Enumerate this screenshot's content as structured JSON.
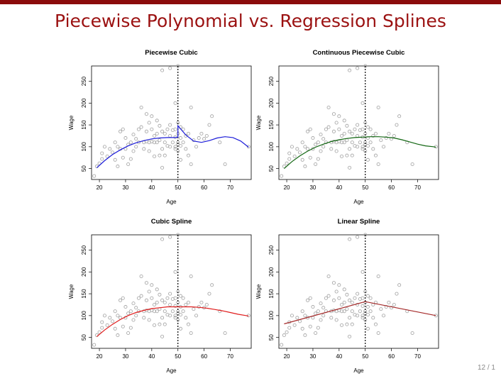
{
  "slide": {
    "title": "Piecewise Polynomial vs. Regression Splines",
    "page_number": "12 / 1",
    "accent_color": "#8b0c0c",
    "title_color": "#9b1111"
  },
  "chart_data": [
    {
      "type": "scatter",
      "title": "Piecewise Cubic",
      "xlabel": "Age",
      "ylabel": "Wage",
      "xlim": [
        17,
        78
      ],
      "ylim": [
        25,
        285
      ],
      "xticks": [
        20,
        30,
        40,
        50,
        60,
        70
      ],
      "yticks": [
        50,
        100,
        150,
        200,
        250
      ],
      "knot": 50,
      "curve_color": "#1c1cd9",
      "curve": {
        "x": [
          19,
          22,
          25,
          28,
          31,
          34,
          37,
          40,
          43,
          46,
          49,
          50,
          50,
          53,
          56,
          59,
          62,
          65,
          68,
          71,
          74,
          77
        ],
        "y": [
          52,
          68,
          82,
          93,
          102,
          109,
          114,
          118,
          120,
          121,
          121,
          122,
          148,
          127,
          113,
          110,
          114,
          120,
          123,
          121,
          113,
          99
        ]
      }
    },
    {
      "type": "scatter",
      "title": "Continuous Piecewise Cubic",
      "xlabel": "Age",
      "ylabel": "Wage",
      "xlim": [
        17,
        78
      ],
      "ylim": [
        25,
        285
      ],
      "xticks": [
        20,
        30,
        40,
        50,
        60,
        70
      ],
      "yticks": [
        50,
        100,
        150,
        200,
        250
      ],
      "knot": 50,
      "curve_color": "#116611",
      "curve": {
        "x": [
          19,
          22,
          25,
          28,
          31,
          34,
          37,
          40,
          43,
          46,
          49,
          52,
          55,
          58,
          61,
          64,
          67,
          70,
          73,
          76,
          77
        ],
        "y": [
          50,
          66,
          79,
          90,
          99,
          106,
          112,
          116,
          119,
          121,
          122,
          123,
          123,
          122,
          120,
          116,
          111,
          106,
          102,
          100,
          99
        ]
      }
    },
    {
      "type": "scatter",
      "title": "Cubic Spline",
      "xlabel": "Age",
      "ylabel": "Wage",
      "xlim": [
        17,
        78
      ],
      "ylim": [
        25,
        285
      ],
      "xticks": [
        20,
        30,
        40,
        50,
        60,
        70
      ],
      "yticks": [
        50,
        100,
        150,
        200,
        250
      ],
      "knot": 50,
      "curve_color": "#e01c1c",
      "curve": {
        "x": [
          19,
          22,
          25,
          28,
          31,
          34,
          37,
          40,
          43,
          46,
          49,
          52,
          55,
          58,
          61,
          64,
          67,
          70,
          73,
          76,
          77
        ],
        "y": [
          52,
          67,
          80,
          91,
          100,
          107,
          112,
          116,
          118,
          120,
          120,
          120,
          120,
          119,
          117,
          114,
          111,
          107,
          103,
          100,
          99
        ]
      }
    },
    {
      "type": "scatter",
      "title": "Linear Spline",
      "xlabel": "Age",
      "ylabel": "Wage",
      "xlim": [
        17,
        78
      ],
      "ylim": [
        25,
        285
      ],
      "xticks": [
        20,
        30,
        40,
        50,
        60,
        70
      ],
      "yticks": [
        50,
        100,
        150,
        200,
        250
      ],
      "knot": 50,
      "curve_color": "#a52a2a",
      "curve": {
        "x": [
          19,
          50,
          77
        ],
        "y": [
          81,
          132,
          100
        ]
      }
    }
  ],
  "scatter_points": {
    "color": "#a0a0a0",
    "x": [
      18,
      19,
      20,
      21,
      21,
      22,
      23,
      24,
      25,
      26,
      26,
      27,
      27,
      28,
      28,
      29,
      29,
      30,
      30,
      31,
      31,
      32,
      32,
      33,
      33,
      34,
      34,
      35,
      35,
      36,
      36,
      37,
      37,
      38,
      38,
      38,
      39,
      39,
      39,
      40,
      40,
      40,
      41,
      41,
      41,
      42,
      42,
      42,
      43,
      43,
      43,
      44,
      44,
      44,
      45,
      45,
      45,
      46,
      46,
      47,
      47,
      47,
      48,
      48,
      49,
      49,
      49,
      49,
      50,
      50,
      50,
      50,
      50,
      51,
      51,
      51,
      51,
      52,
      52,
      53,
      53,
      54,
      54,
      55,
      55,
      56,
      57,
      58,
      59,
      60,
      61,
      62,
      63,
      66,
      68,
      77,
      44,
      47,
      49,
      50
    ],
    "y": [
      33,
      55,
      62,
      85,
      72,
      100,
      78,
      95,
      87,
      70,
      110,
      100,
      55,
      95,
      135,
      75,
      140,
      95,
      120,
      60,
      105,
      110,
      72,
      128,
      90,
      118,
      100,
      140,
      110,
      190,
      145,
      110,
      95,
      175,
      135,
      112,
      155,
      110,
      90,
      170,
      140,
      112,
      125,
      78,
      110,
      160,
      130,
      110,
      148,
      115,
      80,
      135,
      95,
      52,
      130,
      110,
      80,
      140,
      102,
      150,
      125,
      100,
      138,
      110,
      200,
      140,
      122,
      100,
      285,
      155,
      130,
      110,
      90,
      120,
      145,
      102,
      70,
      140,
      110,
      125,
      95,
      130,
      80,
      190,
      60,
      115,
      100,
      120,
      130,
      118,
      125,
      150,
      170,
      110,
      60,
      100,
      275,
      280,
      95,
      105
    ]
  }
}
